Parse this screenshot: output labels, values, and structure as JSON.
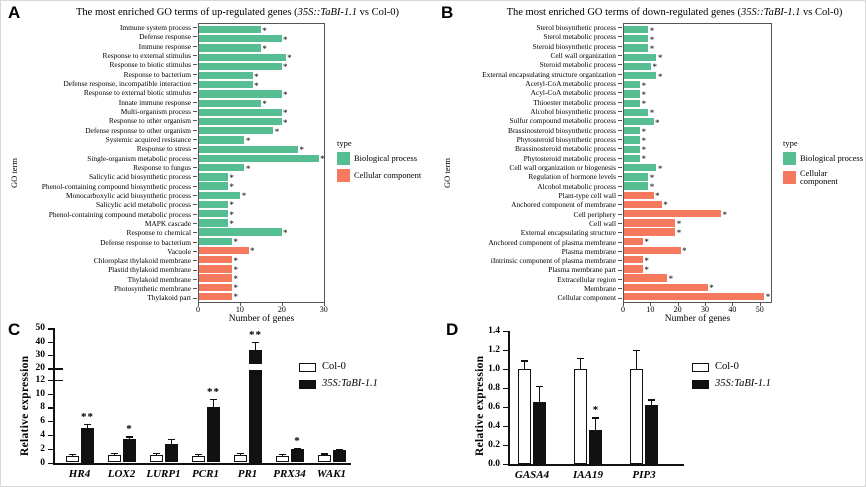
{
  "figure": {
    "background": "#ffffff"
  },
  "colors": {
    "biological_process": "#56BE93",
    "cellular_component": "#F5795D",
    "bar_black": "#111111",
    "bar_white": "#ffffff"
  },
  "chart_data": [
    {
      "type": "bar",
      "orientation": "horizontal",
      "panel": "A",
      "title": {
        "prefix": "The most enriched GO terms of up-regulated genes (",
        "italic": "35S::TaBI-1.1",
        "suffix": " vs Col-0)"
      },
      "ylabel": "GO term",
      "xlabel": "Number of genes",
      "axis_max": 30.3,
      "ticks": [
        {
          "label": "0",
          "v": 0
        },
        {
          "label": "10",
          "v": 10
        },
        {
          "label": "20",
          "v": 20
        },
        {
          "label": "30",
          "v": 30
        }
      ],
      "legend": {
        "title": "type",
        "items": [
          {
            "label": "Biological process",
            "key": "bp"
          },
          {
            "label": "Cellular component",
            "key": "cc"
          }
        ]
      },
      "rows": [
        {
          "label": "Immune system process",
          "value": 15,
          "cat": "bp",
          "star": "*"
        },
        {
          "label": "Defense response",
          "value": 20,
          "cat": "bp",
          "star": "*"
        },
        {
          "label": "Immune response",
          "value": 15,
          "cat": "bp",
          "star": "*"
        },
        {
          "label": "Response to external stimulus",
          "value": 21,
          "cat": "bp",
          "star": "*"
        },
        {
          "label": "Response to biotic stimulus",
          "value": 20,
          "cat": "bp",
          "star": "*"
        },
        {
          "label": "Response to bacterium",
          "value": 13,
          "cat": "bp",
          "star": "*"
        },
        {
          "label": "Defense response, incompatible interaction",
          "value": 13,
          "cat": "bp",
          "star": "*"
        },
        {
          "label": "Response to external biotic stimulus",
          "value": 20,
          "cat": "bp",
          "star": "*"
        },
        {
          "label": "Innate immune response",
          "value": 15,
          "cat": "bp",
          "star": "*"
        },
        {
          "label": "Multi-organism process",
          "value": 20,
          "cat": "bp",
          "star": "*"
        },
        {
          "label": "Response to other organism",
          "value": 20,
          "cat": "bp",
          "star": "*"
        },
        {
          "label": "Defense response to other organism",
          "value": 18,
          "cat": "bp",
          "star": "*"
        },
        {
          "label": "Systemic acquired resistance",
          "value": 11,
          "cat": "bp",
          "star": "*"
        },
        {
          "label": "Response to stress",
          "value": 24,
          "cat": "bp",
          "star": "*"
        },
        {
          "label": "Single-organism metabolic process",
          "value": 29,
          "cat": "bp",
          "star": "*"
        },
        {
          "label": "Response to fungus",
          "value": 11,
          "cat": "bp",
          "star": "*"
        },
        {
          "label": "Salicylic acid biosynthetic process",
          "value": 7,
          "cat": "bp",
          "star": "*"
        },
        {
          "label": "Phenol-containing compound biosynthetic process",
          "value": 7,
          "cat": "bp",
          "star": "*"
        },
        {
          "label": "Monocarboxylic acid biosynthetic process",
          "value": 10,
          "cat": "bp",
          "star": "*"
        },
        {
          "label": "Salicylic acid metabolic process",
          "value": 7,
          "cat": "bp",
          "star": "*"
        },
        {
          "label": "Phenol-containing compound metabolic process",
          "value": 7,
          "cat": "bp",
          "star": "*"
        },
        {
          "label": "MAPK cascade",
          "value": 7,
          "cat": "bp",
          "star": "*"
        },
        {
          "label": "Response to chemical",
          "value": 20,
          "cat": "bp",
          "star": "*"
        },
        {
          "label": "Defense response to bacterium",
          "value": 8,
          "cat": "bp",
          "star": "*"
        },
        {
          "label": "Vacuole",
          "value": 12,
          "cat": "cc",
          "star": "*"
        },
        {
          "label": "Chloroplast thylakoid membrane",
          "value": 8,
          "cat": "cc",
          "star": "*"
        },
        {
          "label": "Plastid thylakoid membrane",
          "value": 8,
          "cat": "cc",
          "star": "*"
        },
        {
          "label": "Thylakoid membrane",
          "value": 8,
          "cat": "cc",
          "star": "*"
        },
        {
          "label": "Photosynthetic membrane",
          "value": 8,
          "cat": "cc",
          "star": "*"
        },
        {
          "label": "Thylakoid part",
          "value": 8,
          "cat": "cc",
          "star": "*"
        }
      ]
    },
    {
      "type": "bar",
      "orientation": "horizontal",
      "panel": "B",
      "title": {
        "prefix": "The most enriched GO terms of down-regulated genes (",
        "italic": "35S::TaBI-1.1",
        "suffix": " vs Col-0)"
      },
      "ylabel": "GO term",
      "xlabel": "Number of genes",
      "axis_max": 54.5,
      "ticks": [
        {
          "label": "0",
          "v": 0
        },
        {
          "label": "10",
          "v": 10
        },
        {
          "label": "20",
          "v": 20
        },
        {
          "label": "30",
          "v": 30
        },
        {
          "label": "40",
          "v": 40
        },
        {
          "label": "50",
          "v": 50
        }
      ],
      "legend": {
        "title": "type",
        "items": [
          {
            "label": "Biological process",
            "key": "bp"
          },
          {
            "label": "Cellular component",
            "key": "cc"
          }
        ]
      },
      "rows": [
        {
          "label": "Sterol biosynthetic process",
          "value": 9,
          "cat": "bp",
          "star": "*"
        },
        {
          "label": "Sterol metabolic process",
          "value": 9,
          "cat": "bp",
          "star": "*"
        },
        {
          "label": "Steroid biosynthetic process",
          "value": 9,
          "cat": "bp",
          "star": "*"
        },
        {
          "label": "Cell wall organization",
          "value": 12,
          "cat": "bp",
          "star": "*"
        },
        {
          "label": "Steroid metabolic process",
          "value": 10,
          "cat": "bp",
          "star": "*"
        },
        {
          "label": "External encapsulating structure organization",
          "value": 12,
          "cat": "bp",
          "star": "*"
        },
        {
          "label": "Acetyl-CoA metabolic process",
          "value": 6,
          "cat": "bp",
          "star": "*"
        },
        {
          "label": "Acyl-CoA metabolic process",
          "value": 6,
          "cat": "bp",
          "star": "*"
        },
        {
          "label": "Thioester metabolic process",
          "value": 6,
          "cat": "bp",
          "star": "*"
        },
        {
          "label": "Alcohol biosynthetic process",
          "value": 9,
          "cat": "bp",
          "star": "*"
        },
        {
          "label": "Sulfur compound metabolic process",
          "value": 11,
          "cat": "bp",
          "star": "*"
        },
        {
          "label": "Brassinosteroid biosynthetic process",
          "value": 6,
          "cat": "bp",
          "star": "*"
        },
        {
          "label": "Phytosteroid biosynthetic process",
          "value": 6,
          "cat": "bp",
          "star": "*"
        },
        {
          "label": "Brassinosteroid metabolic process",
          "value": 6,
          "cat": "bp",
          "star": "*"
        },
        {
          "label": "Phytosteroid metabolic process",
          "value": 6,
          "cat": "bp",
          "star": "*"
        },
        {
          "label": "Cell wall organization or biogenesis",
          "value": 12,
          "cat": "bp",
          "star": "*"
        },
        {
          "label": "Regulation of hormone levels",
          "value": 9,
          "cat": "bp",
          "star": "*"
        },
        {
          "label": "Alcohol metabolic process",
          "value": 9,
          "cat": "bp",
          "star": "*"
        },
        {
          "label": "Plant-type cell wall",
          "value": 11,
          "cat": "cc",
          "star": "*"
        },
        {
          "label": "Anchored component of membrane",
          "value": 14,
          "cat": "cc",
          "star": "*"
        },
        {
          "label": "Cell periphery",
          "value": 36,
          "cat": "cc",
          "star": "*"
        },
        {
          "label": "Cell wall",
          "value": 19,
          "cat": "cc",
          "star": "*"
        },
        {
          "label": "External encapsulating structure",
          "value": 19,
          "cat": "cc",
          "star": "*"
        },
        {
          "label": "Anchored component of plasma membrane",
          "value": 7,
          "cat": "cc",
          "star": "*"
        },
        {
          "label": "Plasma membrane",
          "value": 21,
          "cat": "cc",
          "star": "*"
        },
        {
          "label": "iIntrinsic component of plasma membrane",
          "value": 7,
          "cat": "cc",
          "star": "*"
        },
        {
          "label": "Plasma membrane part",
          "value": 7,
          "cat": "cc",
          "star": "*"
        },
        {
          "label": "Extracellular region",
          "value": 16,
          "cat": "cc",
          "star": "*"
        },
        {
          "label": "Membrane",
          "value": 31,
          "cat": "cc",
          "star": "*"
        },
        {
          "label": "Cellular component",
          "value": 52,
          "cat": "cc",
          "star": "*"
        }
      ]
    },
    {
      "type": "grouped-bar",
      "panel": "C",
      "ylabel": "Relative expression",
      "axis": {
        "broken": true,
        "lower": {
          "min": 0,
          "max": 12,
          "ticks": [
            {
              "label": "0",
              "v": 0
            },
            {
              "label": "2",
              "v": 2
            },
            {
              "label": "4",
              "v": 4
            },
            {
              "label": "6",
              "v": 6
            },
            {
              "label": "8",
              "v": 8
            },
            {
              "label": "10",
              "v": 10
            },
            {
              "label": "12",
              "v": 12
            }
          ]
        },
        "upper": {
          "min": 20,
          "max": 50,
          "ticks": [
            {
              "label": "20",
              "v": 20
            },
            {
              "label": "30",
              "v": 30
            },
            {
              "label": "40",
              "v": 40
            },
            {
              "label": "50",
              "v": 50
            }
          ]
        }
      },
      "legend": [
        {
          "label": "Col-0",
          "fill": "white",
          "italic": false
        },
        {
          "label": "35S:TaBI-1.1",
          "fill": "black",
          "italic": true
        }
      ],
      "series_names": [
        "Col-0",
        "35S:TaBI-1.1"
      ],
      "groups": [
        {
          "gene": "HR4",
          "col0": {
            "value": 1.0,
            "err": 0.3
          },
          "tabi": {
            "value": 5.0,
            "err": 0.6
          },
          "star": "**"
        },
        {
          "gene": "LOX2",
          "col0": {
            "value": 1.1,
            "err": 0.3
          },
          "tabi": {
            "value": 3.4,
            "err": 0.4
          },
          "star": "*"
        },
        {
          "gene": "LURP1",
          "col0": {
            "value": 1.1,
            "err": 0.3
          },
          "tabi": {
            "value": 2.7,
            "err": 0.7
          },
          "star": ""
        },
        {
          "gene": "PCR1",
          "col0": {
            "value": 1.0,
            "err": 0.25
          },
          "tabi": {
            "value": 8.0,
            "err": 1.2
          },
          "star": "**"
        },
        {
          "gene": "PR1",
          "col0": {
            "value": 1.1,
            "err": 0.3
          },
          "tabi": {
            "value": 34.0,
            "err": 6.0
          },
          "star": "**"
        },
        {
          "gene": "PRX34",
          "col0": {
            "value": 1.0,
            "err": 0.25
          },
          "tabi": {
            "value": 1.9,
            "err": 0.2
          },
          "star": "*"
        },
        {
          "gene": "WAK1",
          "col0": {
            "value": 1.1,
            "err": 0.25
          },
          "tabi": {
            "value": 1.75,
            "err": 0.15
          },
          "star": ""
        }
      ]
    },
    {
      "type": "grouped-bar",
      "panel": "D",
      "ylabel": "Relative expression",
      "axis": {
        "broken": false,
        "ticks": [
          {
            "label": "0.0",
            "v": 0.0
          },
          {
            "label": "0.2",
            "v": 0.2
          },
          {
            "label": "0.4",
            "v": 0.4
          },
          {
            "label": "0.6",
            "v": 0.6
          },
          {
            "label": "0.8",
            "v": 0.8
          },
          {
            "label": "1.0",
            "v": 1.0
          },
          {
            "label": "1.2",
            "v": 1.2
          },
          {
            "label": "1.4",
            "v": 1.4
          }
        ]
      },
      "legend": [
        {
          "label": "Col-0",
          "fill": "white",
          "italic": false
        },
        {
          "label": "35S:TaBI-1.1",
          "fill": "black",
          "italic": true
        }
      ],
      "series_names": [
        "Col-0",
        "35S:TaBI-1.1"
      ],
      "groups": [
        {
          "gene": "GASA4",
          "col0": {
            "value": 1.0,
            "err": 0.09
          },
          "tabi": {
            "value": 0.65,
            "err": 0.17
          },
          "star": ""
        },
        {
          "gene": "IAA19",
          "col0": {
            "value": 1.0,
            "err": 0.12
          },
          "tabi": {
            "value": 0.36,
            "err": 0.13
          },
          "star": "*"
        },
        {
          "gene": "PIP3",
          "col0": {
            "value": 1.0,
            "err": 0.2
          },
          "tabi": {
            "value": 0.62,
            "err": 0.06
          },
          "star": ""
        }
      ]
    }
  ]
}
